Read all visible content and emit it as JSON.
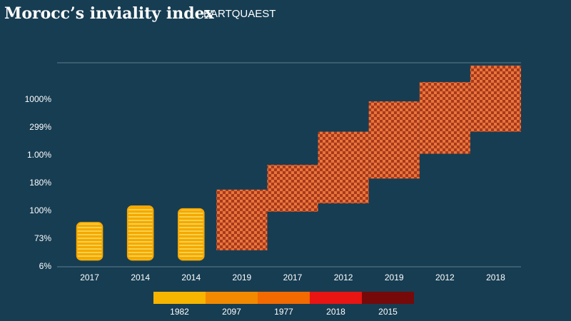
{
  "chart_data": {
    "type": "bar",
    "title": "Morocc’s inviality index",
    "subtitle": "EARTQUAEST",
    "categories": [
      "2017",
      "2014",
      "2014",
      "2019",
      "2017",
      "2012",
      "2019",
      "2012",
      "2018"
    ],
    "y_axis_labels": [
      "6%",
      "73%",
      "100%",
      "180%",
      "1.00%",
      "299%",
      "1000%"
    ],
    "ylim": [
      0,
      7.4
    ],
    "grid": true,
    "series": [
      {
        "kind": "coins",
        "color": "#f5a800",
        "values": [
          1.6,
          2.2,
          2.1,
          null,
          null,
          null,
          null,
          null,
          null
        ]
      },
      {
        "kind": "blocks",
        "color": "#d9582a",
        "low": [
          null,
          null,
          null,
          0.6,
          2.0,
          2.3,
          3.2,
          4.1,
          4.9
        ],
        "high": [
          null,
          null,
          null,
          2.8,
          3.7,
          4.9,
          6.0,
          6.7,
          7.3
        ]
      }
    ],
    "legend": [
      {
        "label": "1982",
        "color": "#f7b500"
      },
      {
        "label": "2097",
        "color": "#f28a00"
      },
      {
        "label": "1977",
        "color": "#f26a00"
      },
      {
        "label": "2018",
        "color": "#e81512"
      },
      {
        "label": "2015",
        "color": "#760a0a"
      }
    ]
  }
}
